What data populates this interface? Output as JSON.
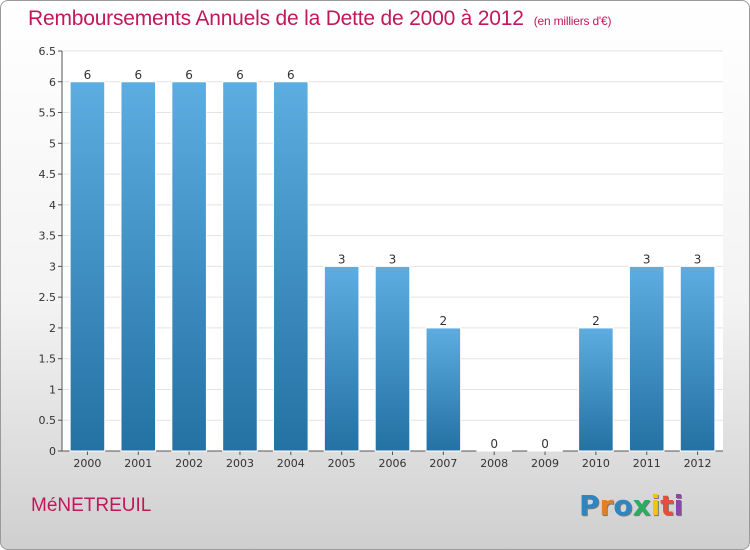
{
  "header": {
    "title": "Remboursements Annuels de la Dette de 2000 à 2012",
    "subtitle": "(en milliers d'€)"
  },
  "footer": {
    "commune": "MéNETREUIL",
    "logo": [
      "P",
      "r",
      "o",
      "x",
      "i",
      "t",
      "i"
    ],
    "logo_colors": [
      "#2e86c1",
      "#e67e22",
      "#2e86c1",
      "#27ae60",
      "#f1c40f",
      "#e74c3c",
      "#8e44ad"
    ]
  },
  "chart_data": {
    "type": "bar",
    "title": "Remboursements Annuels de la Dette de 2000 à 2012",
    "xlabel": "",
    "ylabel": "",
    "categories": [
      "2000",
      "2001",
      "2002",
      "2003",
      "2004",
      "2005",
      "2006",
      "2007",
      "2008",
      "2009",
      "2010",
      "2011",
      "2012"
    ],
    "values": [
      6,
      6,
      6,
      6,
      6,
      3,
      3,
      2,
      0,
      0,
      2,
      3,
      3
    ],
    "data_labels": [
      "6",
      "6",
      "6",
      "6",
      "6",
      "3",
      "3",
      "2",
      "0",
      "0",
      "2",
      "3",
      "3"
    ],
    "ylim": [
      0,
      6.5
    ],
    "yticks": [
      0,
      0.5,
      1,
      1.5,
      2,
      2.5,
      3,
      3.5,
      4,
      4.5,
      5,
      5.5,
      6,
      6.5
    ],
    "ytick_labels": [
      "0",
      "0.5",
      "1",
      "1.5",
      "2",
      "2.5",
      "3",
      "3.5",
      "4",
      "4.5",
      "5",
      "5.5",
      "6",
      "6.5"
    ],
    "grid": true,
    "legend": "none",
    "colors": {
      "bar_top": "#5dade2",
      "bar_bottom": "#2471a3",
      "title": "#c2185b"
    }
  }
}
